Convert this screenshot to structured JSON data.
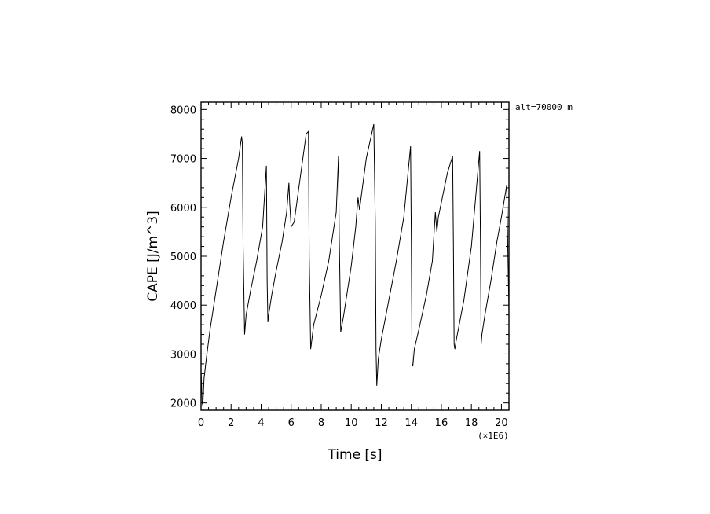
{
  "chart_data": {
    "type": "line",
    "xlabel": "Time [s]",
    "ylabel": "CAPE [J/m^3]",
    "x_scale_note": "(×1E6)",
    "annotation": "alt=70000 m",
    "xlim": [
      0,
      20.5
    ],
    "ylim": [
      1850,
      8150
    ],
    "x_ticks": [
      0,
      2,
      4,
      6,
      8,
      10,
      12,
      14,
      16,
      18,
      20
    ],
    "y_ticks": [
      2000,
      3000,
      4000,
      5000,
      6000,
      7000,
      8000
    ],
    "grid": false,
    "series": [
      {
        "x": [
          0.0,
          0.08,
          0.12,
          0.2,
          0.35,
          0.6,
          1.0,
          1.5,
          2.0,
          2.5,
          2.7,
          2.75,
          2.8,
          2.9,
          3.0,
          3.3,
          3.7,
          4.1,
          4.35,
          4.4,
          4.45,
          4.5,
          4.7,
          5.0,
          5.4,
          5.7,
          5.85,
          5.9,
          6.0,
          6.2,
          6.6,
          7.0,
          7.15,
          7.2,
          7.3,
          7.5,
          8.0,
          8.5,
          9.0,
          9.15,
          9.2,
          9.3,
          9.5,
          10.0,
          10.3,
          10.45,
          10.55,
          10.7,
          11.0,
          11.5,
          11.6,
          11.65,
          11.7,
          11.8,
          12.0,
          12.5,
          13.0,
          13.5,
          13.95,
          14.0,
          14.05,
          14.1,
          14.2,
          14.5,
          15.0,
          15.4,
          15.6,
          15.7,
          15.8,
          16.0,
          16.4,
          16.75,
          16.8,
          16.85,
          16.9,
          17.0,
          17.5,
          18.0,
          18.55,
          18.6,
          18.65,
          18.7,
          18.9,
          19.3,
          19.7,
          20.0,
          20.35,
          20.5
        ],
        "values": [
          2650,
          2000,
          1950,
          2500,
          2900,
          3500,
          4300,
          5300,
          6200,
          7000,
          7450,
          7300,
          5200,
          3400,
          3800,
          4300,
          4900,
          5600,
          6850,
          4500,
          3650,
          3800,
          4200,
          4700,
          5300,
          5900,
          6500,
          6100,
          5600,
          5700,
          6600,
          7500,
          7550,
          5000,
          3100,
          3600,
          4200,
          4900,
          5900,
          7050,
          5400,
          3450,
          3800,
          4800,
          5600,
          6200,
          5950,
          6300,
          7000,
          7700,
          5700,
          3100,
          2350,
          2900,
          3300,
          4100,
          4900,
          5800,
          7250,
          5300,
          2800,
          2750,
          3100,
          3500,
          4200,
          4900,
          5900,
          5500,
          5800,
          6100,
          6700,
          7050,
          5300,
          3200,
          3100,
          3300,
          4100,
          5200,
          7150,
          5400,
          3200,
          3400,
          3800,
          4500,
          5300,
          5800,
          6450,
          3850
        ]
      }
    ]
  }
}
